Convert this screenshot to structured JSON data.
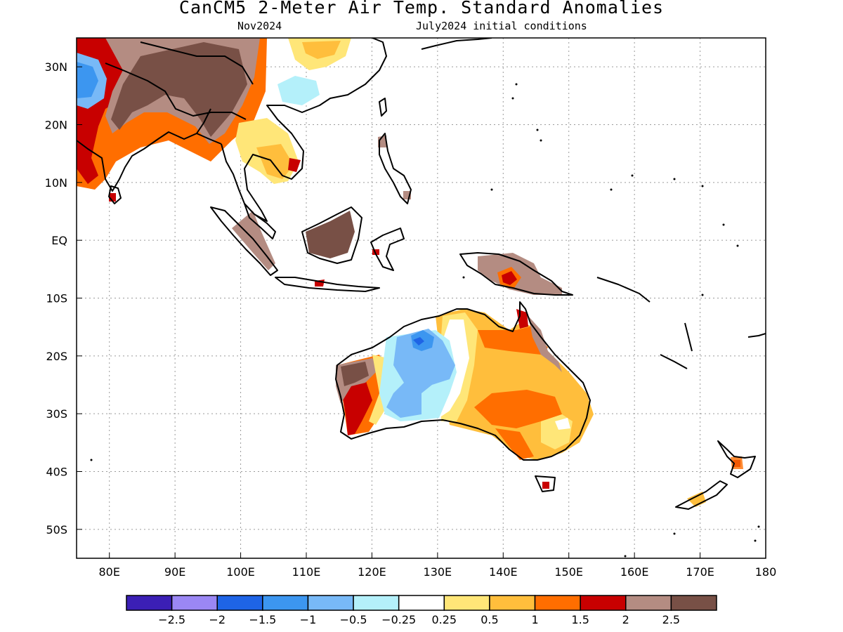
{
  "header": {
    "title": "CanCM5 2-Meter Air Temp. Standard Anomalies",
    "target_month": "Nov2024",
    "initial_conditions": "July2024 initial conditions"
  },
  "axes": {
    "lat_labels": [
      "30N",
      "20N",
      "10N",
      "EQ",
      "10S",
      "20S",
      "30S",
      "40S",
      "50S"
    ],
    "lon_labels": [
      "80E",
      "90E",
      "100E",
      "110E",
      "120E",
      "130E",
      "140E",
      "150E",
      "160E",
      "170E",
      "180"
    ],
    "lat_values": [
      30,
      20,
      10,
      0,
      -10,
      -20,
      -30,
      -40,
      -50
    ],
    "lon_values": [
      80,
      90,
      100,
      110,
      120,
      130,
      140,
      150,
      160,
      170,
      180
    ],
    "lat_range": [
      -55,
      35
    ],
    "lon_range": [
      75,
      180
    ],
    "grid": "dotted"
  },
  "colorbar": {
    "colors": [
      "#3b1fb5",
      "#9b87f4",
      "#1e64e6",
      "#3c96f0",
      "#78b9f7",
      "#b4f0fa",
      "#ffffff",
      "#ffe678",
      "#ffbe3c",
      "#ff6e00",
      "#c80000",
      "#b48c82",
      "#785046"
    ],
    "tick_labels": [
      "-2.5",
      "-2",
      "-1.5",
      "-1",
      "-0.5",
      "-0.25",
      "0.25",
      "0.5",
      "1",
      "1.5",
      "2",
      "2.5"
    ]
  }
}
